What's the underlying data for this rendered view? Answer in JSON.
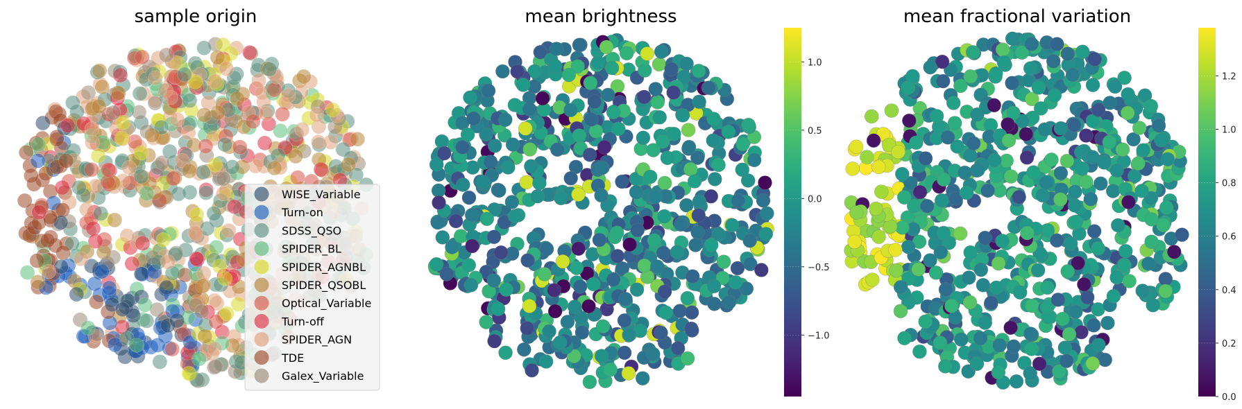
{
  "chart_data": [
    {
      "type": "scatter",
      "title": "sample origin",
      "legend_position": "lower-right",
      "series": [
        {
          "name": "WISE_Variable",
          "color": "#2f4f6f"
        },
        {
          "name": "Turn-on",
          "color": "#1f5fbf"
        },
        {
          "name": "SDSS_QSO",
          "color": "#5a8f7f"
        },
        {
          "name": "SPIDER_BL",
          "color": "#5fbf7f"
        },
        {
          "name": "SPIDER_AGNBL",
          "color": "#d9d92a"
        },
        {
          "name": "SPIDER_QSOBL",
          "color": "#b8863a"
        },
        {
          "name": "Optical_Variable",
          "color": "#d9574a"
        },
        {
          "name": "Turn-off",
          "color": "#dc2f45"
        },
        {
          "name": "SPIDER_AGN",
          "color": "#dfa27e"
        },
        {
          "name": "TDE",
          "color": "#9e4a2a"
        },
        {
          "name": "Galex_Variable",
          "color": "#9a8a78"
        }
      ],
      "grid": false
    },
    {
      "type": "scatter",
      "title": "mean brightness",
      "colormap": "viridis",
      "colorbar": {
        "min": -1.45,
        "max": 1.25,
        "ticks": [
          -1.0,
          -0.5,
          0.0,
          0.5,
          1.0
        ],
        "tick_labels": [
          "−1.0",
          "−0.5",
          "0.0",
          "0.5",
          "1.0"
        ]
      },
      "grid": false
    },
    {
      "type": "scatter",
      "title": "mean fractional variation",
      "colormap": "viridis",
      "colorbar": {
        "min": 0.0,
        "max": 1.38,
        "ticks": [
          0.0,
          0.2,
          0.4,
          0.6,
          0.8,
          1.0,
          1.2
        ],
        "tick_labels": [
          "0.0",
          "0.2",
          "0.4",
          "0.6",
          "0.8",
          "1.0",
          "1.2"
        ]
      },
      "grid": false
    }
  ]
}
